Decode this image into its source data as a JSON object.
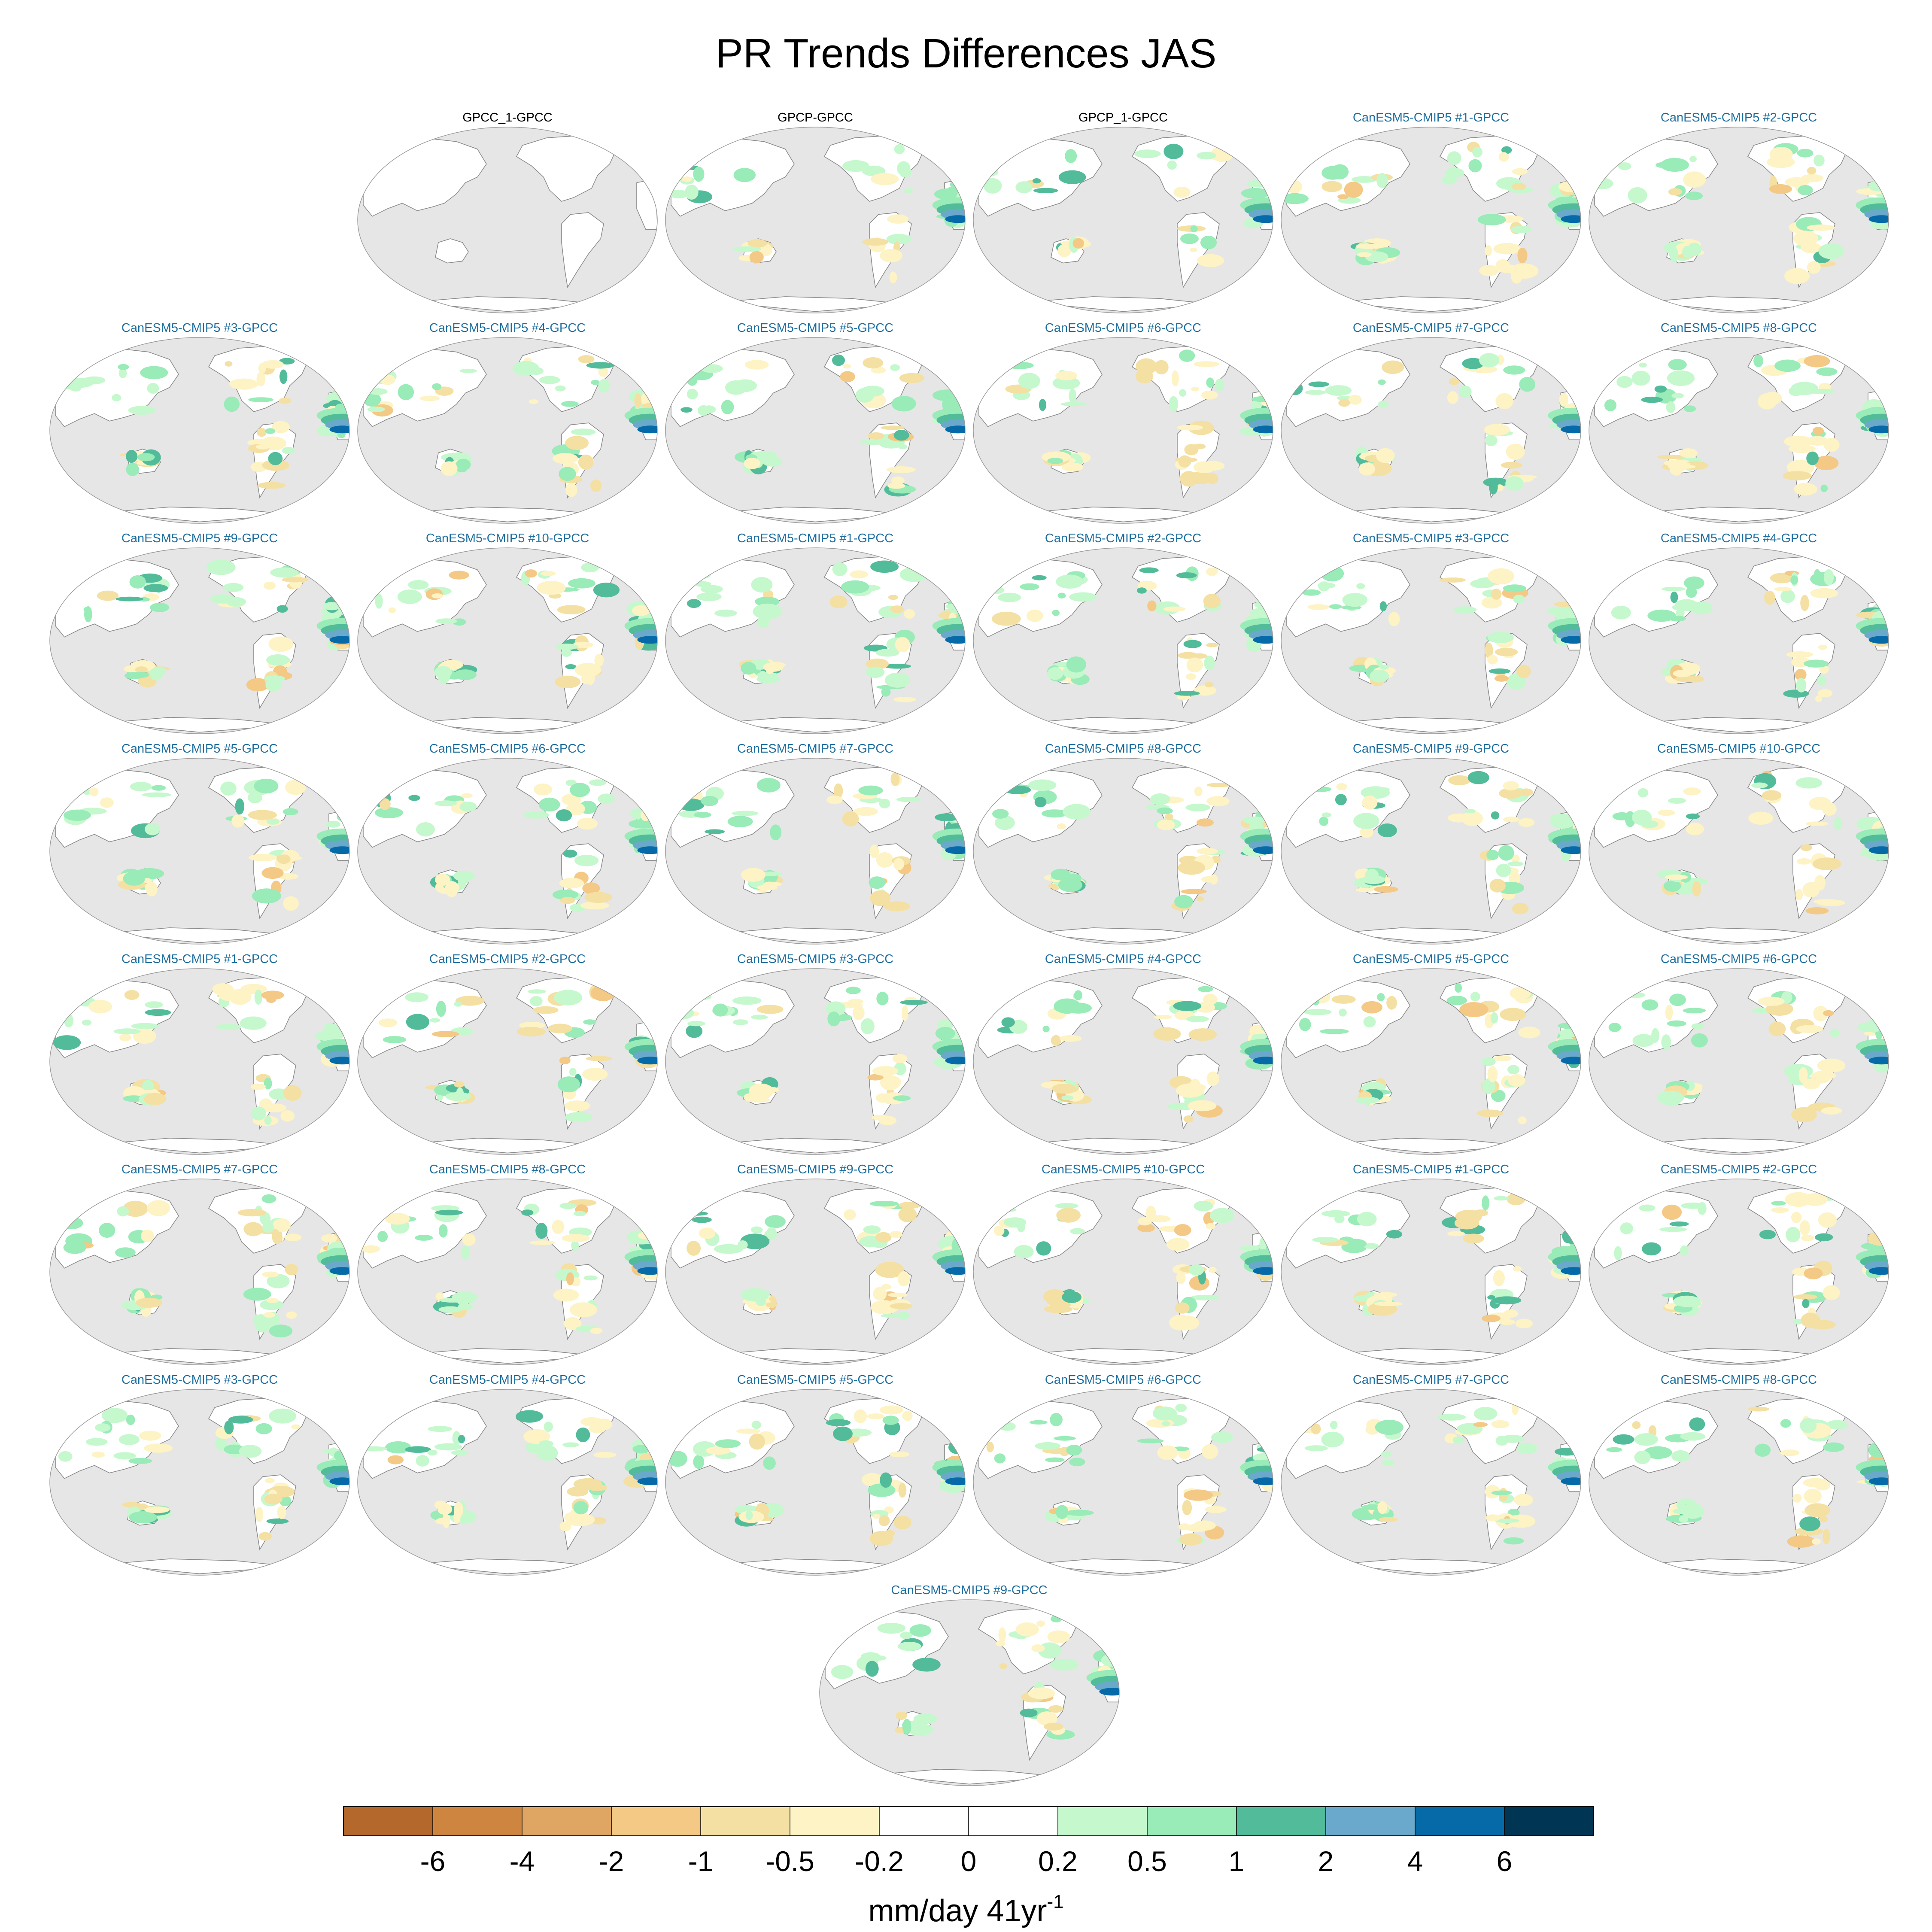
{
  "chart_data": {
    "type": "heatmap",
    "title": "PR Trends Differences JAS",
    "projection": "robinson-ellipse-pacific-centered",
    "ocean_color": "#e6e6e6",
    "land_missing_color": "#ffffff",
    "panels": [
      {
        "row": 0,
        "col": 1,
        "title": "GPCC_1-GPCC",
        "title_color": "#000000",
        "pattern": "empty"
      },
      {
        "row": 0,
        "col": 2,
        "title": "GPCP-GPCC",
        "title_color": "#000000",
        "pattern": "obs"
      },
      {
        "row": 0,
        "col": 3,
        "title": "GPCP_1-GPCC",
        "title_color": "#000000",
        "pattern": "obs"
      },
      {
        "row": 0,
        "col": 4,
        "title": "CanESM5-CMIP5 #1-GPCC",
        "title_color": "#1f6f9f",
        "pattern": "model"
      },
      {
        "row": 0,
        "col": 5,
        "title": "CanESM5-CMIP5 #2-GPCC",
        "title_color": "#1f6f9f",
        "pattern": "model"
      },
      {
        "row": 1,
        "col": 0,
        "title": "CanESM5-CMIP5 #3-GPCC",
        "title_color": "#1f6f9f",
        "pattern": "model"
      },
      {
        "row": 1,
        "col": 1,
        "title": "CanESM5-CMIP5 #4-GPCC",
        "title_color": "#1f6f9f",
        "pattern": "model"
      },
      {
        "row": 1,
        "col": 2,
        "title": "CanESM5-CMIP5 #5-GPCC",
        "title_color": "#1f6f9f",
        "pattern": "model"
      },
      {
        "row": 1,
        "col": 3,
        "title": "CanESM5-CMIP5 #6-GPCC",
        "title_color": "#1f6f9f",
        "pattern": "model"
      },
      {
        "row": 1,
        "col": 4,
        "title": "CanESM5-CMIP5 #7-GPCC",
        "title_color": "#1f6f9f",
        "pattern": "model"
      },
      {
        "row": 1,
        "col": 5,
        "title": "CanESM5-CMIP5 #8-GPCC",
        "title_color": "#1f6f9f",
        "pattern": "model"
      },
      {
        "row": 2,
        "col": 0,
        "title": "CanESM5-CMIP5 #9-GPCC",
        "title_color": "#1f6f9f",
        "pattern": "model"
      },
      {
        "row": 2,
        "col": 1,
        "title": "CanESM5-CMIP5 #10-GPCC",
        "title_color": "#1f6f9f",
        "pattern": "model"
      },
      {
        "row": 2,
        "col": 2,
        "title": "CanESM5-CMIP5 #1-GPCC",
        "title_color": "#1f6f9f",
        "pattern": "model"
      },
      {
        "row": 2,
        "col": 3,
        "title": "CanESM5-CMIP5 #2-GPCC",
        "title_color": "#1f6f9f",
        "pattern": "model"
      },
      {
        "row": 2,
        "col": 4,
        "title": "CanESM5-CMIP5 #3-GPCC",
        "title_color": "#1f6f9f",
        "pattern": "model"
      },
      {
        "row": 2,
        "col": 5,
        "title": "CanESM5-CMIP5 #4-GPCC",
        "title_color": "#1f6f9f",
        "pattern": "model"
      },
      {
        "row": 3,
        "col": 0,
        "title": "CanESM5-CMIP5 #5-GPCC",
        "title_color": "#1f6f9f",
        "pattern": "model"
      },
      {
        "row": 3,
        "col": 1,
        "title": "CanESM5-CMIP5 #6-GPCC",
        "title_color": "#1f6f9f",
        "pattern": "model"
      },
      {
        "row": 3,
        "col": 2,
        "title": "CanESM5-CMIP5 #7-GPCC",
        "title_color": "#1f6f9f",
        "pattern": "model"
      },
      {
        "row": 3,
        "col": 3,
        "title": "CanESM5-CMIP5 #8-GPCC",
        "title_color": "#1f6f9f",
        "pattern": "model"
      },
      {
        "row": 3,
        "col": 4,
        "title": "CanESM5-CMIP5 #9-GPCC",
        "title_color": "#1f6f9f",
        "pattern": "model"
      },
      {
        "row": 3,
        "col": 5,
        "title": "CanESM5-CMIP5 #10-GPCC",
        "title_color": "#1f6f9f",
        "pattern": "model"
      },
      {
        "row": 4,
        "col": 0,
        "title": "CanESM5-CMIP5 #1-GPCC",
        "title_color": "#1f6f9f",
        "pattern": "model"
      },
      {
        "row": 4,
        "col": 1,
        "title": "CanESM5-CMIP5 #2-GPCC",
        "title_color": "#1f6f9f",
        "pattern": "model"
      },
      {
        "row": 4,
        "col": 2,
        "title": "CanESM5-CMIP5 #3-GPCC",
        "title_color": "#1f6f9f",
        "pattern": "model"
      },
      {
        "row": 4,
        "col": 3,
        "title": "CanESM5-CMIP5 #4-GPCC",
        "title_color": "#1f6f9f",
        "pattern": "model"
      },
      {
        "row": 4,
        "col": 4,
        "title": "CanESM5-CMIP5 #5-GPCC",
        "title_color": "#1f6f9f",
        "pattern": "model"
      },
      {
        "row": 4,
        "col": 5,
        "title": "CanESM5-CMIP5 #6-GPCC",
        "title_color": "#1f6f9f",
        "pattern": "model"
      },
      {
        "row": 5,
        "col": 0,
        "title": "CanESM5-CMIP5 #7-GPCC",
        "title_color": "#1f6f9f",
        "pattern": "model"
      },
      {
        "row": 5,
        "col": 1,
        "title": "CanESM5-CMIP5 #8-GPCC",
        "title_color": "#1f6f9f",
        "pattern": "model"
      },
      {
        "row": 5,
        "col": 2,
        "title": "CanESM5-CMIP5 #9-GPCC",
        "title_color": "#1f6f9f",
        "pattern": "model"
      },
      {
        "row": 5,
        "col": 3,
        "title": "CanESM5-CMIP5 #10-GPCC",
        "title_color": "#1f6f9f",
        "pattern": "model"
      },
      {
        "row": 5,
        "col": 4,
        "title": "CanESM5-CMIP5 #1-GPCC",
        "title_color": "#1f6f9f",
        "pattern": "model"
      },
      {
        "row": 5,
        "col": 5,
        "title": "CanESM5-CMIP5 #2-GPCC",
        "title_color": "#1f6f9f",
        "pattern": "model"
      },
      {
        "row": 6,
        "col": 0,
        "title": "CanESM5-CMIP5 #3-GPCC",
        "title_color": "#1f6f9f",
        "pattern": "model"
      },
      {
        "row": 6,
        "col": 1,
        "title": "CanESM5-CMIP5 #4-GPCC",
        "title_color": "#1f6f9f",
        "pattern": "model"
      },
      {
        "row": 6,
        "col": 2,
        "title": "CanESM5-CMIP5 #5-GPCC",
        "title_color": "#1f6f9f",
        "pattern": "model"
      },
      {
        "row": 6,
        "col": 3,
        "title": "CanESM5-CMIP5 #6-GPCC",
        "title_color": "#1f6f9f",
        "pattern": "model"
      },
      {
        "row": 6,
        "col": 4,
        "title": "CanESM5-CMIP5 #7-GPCC",
        "title_color": "#1f6f9f",
        "pattern": "model"
      },
      {
        "row": 6,
        "col": 5,
        "title": "CanESM5-CMIP5 #8-GPCC",
        "title_color": "#1f6f9f",
        "pattern": "model"
      },
      {
        "row": 7,
        "col": 2.5,
        "title": "CanESM5-CMIP5 #9-GPCC",
        "title_color": "#1f6f9f",
        "pattern": "model"
      }
    ],
    "colorbar": {
      "tick_labels": [
        "-6",
        "-4",
        "-2",
        "-1",
        "-0.5",
        "-0.2",
        "0",
        "0.2",
        "0.5",
        "1",
        "2",
        "4",
        "6"
      ],
      "colors": [
        "#b5682b",
        "#cd853f",
        "#dfa562",
        "#f3c985",
        "#f4e0a2",
        "#fdf3c4",
        "#ffffff",
        "#ffffff",
        "#c6f8ce",
        "#99ebb8",
        "#52bc9a",
        "#6aa9cb",
        "#066aa8",
        "#003554"
      ],
      "unit_label": "mm/day 41yr",
      "unit_exponent": "-1"
    }
  }
}
